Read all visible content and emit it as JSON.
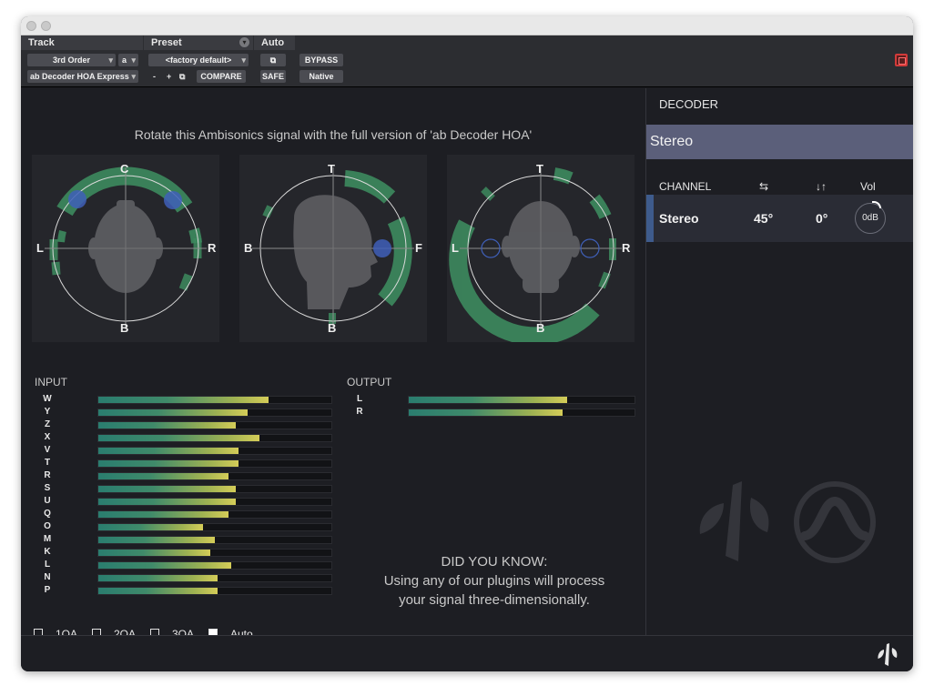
{
  "host": {
    "track_header": "Track",
    "track_order": "3rd Order",
    "track_channel": "a",
    "plugin_name": "ab Decoder HOA Express",
    "preset_header": "Preset",
    "preset_value": "<factory default>",
    "preset_minus": "-",
    "preset_plus": "+",
    "compare_label": "COMPARE",
    "auto_header": "Auto",
    "safe_label": "SAFE",
    "bypass_label": "BYPASS",
    "native_label": "Native"
  },
  "main": {
    "rotate_message": "Rotate this Ambisonics signal with the full version of 'ab Decoder HOA'",
    "spheres": [
      {
        "name": "top-view",
        "labels": {
          "top": "C",
          "bottom": "B",
          "left": "L",
          "right": "R"
        }
      },
      {
        "name": "side-view",
        "labels": {
          "top": "T",
          "bottom": "B",
          "left": "B",
          "right": "F"
        }
      },
      {
        "name": "front-view",
        "labels": {
          "top": "T",
          "bottom": "B",
          "left": "L",
          "right": "R"
        }
      }
    ],
    "input": {
      "title": "INPUT",
      "channels": [
        {
          "label": "W",
          "level": 0.73
        },
        {
          "label": "Y",
          "level": 0.64
        },
        {
          "label": "Z",
          "level": 0.59
        },
        {
          "label": "X",
          "level": 0.69
        },
        {
          "label": "V",
          "level": 0.6
        },
        {
          "label": "T",
          "level": 0.6
        },
        {
          "label": "R",
          "level": 0.56
        },
        {
          "label": "S",
          "level": 0.59
        },
        {
          "label": "U",
          "level": 0.59
        },
        {
          "label": "Q",
          "level": 0.56
        },
        {
          "label": "O",
          "level": 0.45
        },
        {
          "label": "M",
          "level": 0.5
        },
        {
          "label": "K",
          "level": 0.48
        },
        {
          "label": "L",
          "level": 0.57
        },
        {
          "label": "N",
          "level": 0.51
        },
        {
          "label": "P",
          "level": 0.51
        }
      ]
    },
    "output": {
      "title": "OUTPUT",
      "channels": [
        {
          "label": "L",
          "level": 0.7
        },
        {
          "label": "R",
          "level": 0.68
        }
      ]
    },
    "did_you_know": {
      "heading": "DID YOU KNOW:",
      "line1": "Using any of our plugins will process",
      "line2": "your signal three-dimensionally."
    },
    "orders": [
      {
        "label": "1OA",
        "checked": false
      },
      {
        "label": "2OA",
        "checked": false
      },
      {
        "label": "3OA",
        "checked": false
      },
      {
        "label": "Auto",
        "checked": true
      }
    ]
  },
  "decoder": {
    "title": "DECODER",
    "selected": "Stereo",
    "columns": {
      "channel": "CHANNEL",
      "vol": "Vol"
    },
    "icons": {
      "width": "width-arrows-icon",
      "elevation": "elevation-arrows-icon"
    },
    "rows": [
      {
        "name": "Stereo",
        "width": "45°",
        "elevation": "0°",
        "vol": "0dB"
      }
    ]
  },
  "colors": {
    "accent_selected": "#5b5f7a",
    "meter_low": "#2a7d6f",
    "meter_high": "#d4cc58",
    "sphere_green": "#3d8a5e",
    "source_blue": "#3f5fb8"
  }
}
